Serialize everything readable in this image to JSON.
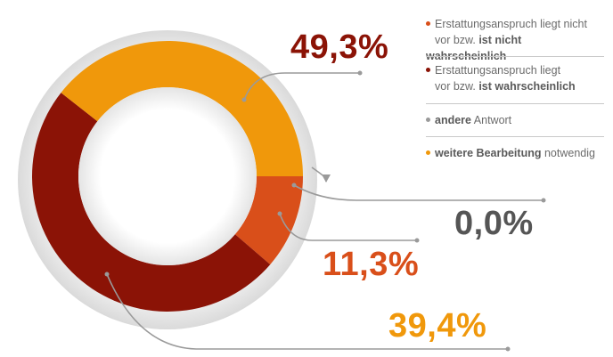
{
  "chart_data": {
    "type": "donut",
    "slices": [
      {
        "key": "nicht",
        "value": 11.3,
        "label": "11,3%",
        "color": "#d94f1a"
      },
      {
        "key": "wahr",
        "value": 49.3,
        "label": "49,3%",
        "color": "#8b1306"
      },
      {
        "key": "andere",
        "value": 0.0,
        "label": "0,0%",
        "color": "#9a9a9a"
      },
      {
        "key": "weitere",
        "value": 39.4,
        "label": "39,4%",
        "color": "#f0980b"
      }
    ],
    "legend": [
      {
        "key": "nicht",
        "color": "#d94f1a",
        "line1": "Erstattungsanspruch liegt nicht",
        "line2_pre": "vor bzw. ",
        "line2_bold": "ist nicht wahrscheinlich"
      },
      {
        "key": "wahr",
        "color": "#8b1306",
        "line1": "Erstattungsanspruch liegt",
        "line2_pre": "vor bzw. ",
        "line2_bold": "ist wahrscheinlich"
      },
      {
        "key": "andere",
        "color": "#9a9a9a",
        "bold": "andere",
        "rest": " Antwort"
      },
      {
        "key": "weitere",
        "color": "#f0980b",
        "bold": "weitere Bearbeitung",
        "rest": " notwendig"
      }
    ]
  }
}
